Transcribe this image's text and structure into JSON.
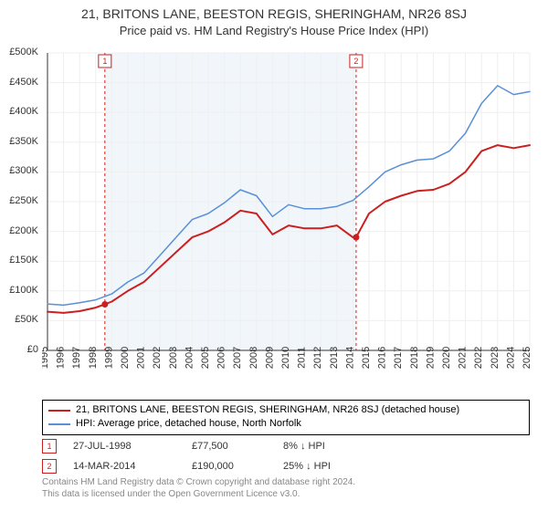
{
  "title": "21, BRITONS LANE, BEESTON REGIS, SHERINGHAM, NR26 8SJ",
  "subtitle": "Price paid vs. HM Land Registry's House Price Index (HPI)",
  "chart": {
    "type": "line",
    "background_color": "#ffffff",
    "band_color": "#f1f6fb",
    "band_start_year": 1998.57,
    "band_end_year": 2014.2,
    "ylim": [
      0,
      500000
    ],
    "ytick_step": 50000,
    "ytick_format_prefix": "£",
    "x_years": [
      1995,
      1996,
      1997,
      1998,
      1999,
      2000,
      2001,
      2002,
      2003,
      2004,
      2005,
      2006,
      2007,
      2008,
      2009,
      2010,
      2011,
      2012,
      2013,
      2014,
      2015,
      2016,
      2017,
      2018,
      2019,
      2020,
      2021,
      2022,
      2023,
      2024,
      2025
    ],
    "grid_color": "#efefef",
    "axis_color": "#333333",
    "label_fontsize": 11,
    "series": [
      {
        "id": "property",
        "label": "21, BRITONS LANE, BEESTON REGIS, SHERINGHAM, NR26 8SJ (detached house)",
        "color": "#cc1f1f",
        "line_width": 2,
        "points": [
          [
            1995,
            65000
          ],
          [
            1996,
            63000
          ],
          [
            1997,
            66000
          ],
          [
            1998,
            72000
          ],
          [
            1998.57,
            77500
          ],
          [
            1999,
            82000
          ],
          [
            2000,
            100000
          ],
          [
            2001,
            115000
          ],
          [
            2002,
            140000
          ],
          [
            2003,
            165000
          ],
          [
            2004,
            190000
          ],
          [
            2005,
            200000
          ],
          [
            2006,
            215000
          ],
          [
            2007,
            235000
          ],
          [
            2008,
            230000
          ],
          [
            2009,
            195000
          ],
          [
            2010,
            210000
          ],
          [
            2011,
            205000
          ],
          [
            2012,
            205000
          ],
          [
            2013,
            210000
          ],
          [
            2014,
            190000
          ],
          [
            2014.2,
            190000
          ],
          [
            2015,
            230000
          ],
          [
            2016,
            250000
          ],
          [
            2017,
            260000
          ],
          [
            2018,
            268000
          ],
          [
            2019,
            270000
          ],
          [
            2020,
            280000
          ],
          [
            2021,
            300000
          ],
          [
            2022,
            335000
          ],
          [
            2023,
            345000
          ],
          [
            2024,
            340000
          ],
          [
            2025,
            345000
          ]
        ]
      },
      {
        "id": "hpi",
        "label": "HPI: Average price, detached house, North Norfolk",
        "color": "#5b8fd6",
        "line_width": 1.5,
        "points": [
          [
            1995,
            78000
          ],
          [
            1996,
            76000
          ],
          [
            1997,
            80000
          ],
          [
            1998,
            85000
          ],
          [
            1999,
            95000
          ],
          [
            2000,
            115000
          ],
          [
            2001,
            130000
          ],
          [
            2002,
            160000
          ],
          [
            2003,
            190000
          ],
          [
            2004,
            220000
          ],
          [
            2005,
            230000
          ],
          [
            2006,
            248000
          ],
          [
            2007,
            270000
          ],
          [
            2008,
            260000
          ],
          [
            2009,
            225000
          ],
          [
            2010,
            245000
          ],
          [
            2011,
            238000
          ],
          [
            2012,
            238000
          ],
          [
            2013,
            242000
          ],
          [
            2014,
            252000
          ],
          [
            2015,
            275000
          ],
          [
            2016,
            300000
          ],
          [
            2017,
            312000
          ],
          [
            2018,
            320000
          ],
          [
            2019,
            322000
          ],
          [
            2020,
            335000
          ],
          [
            2021,
            365000
          ],
          [
            2022,
            415000
          ],
          [
            2023,
            445000
          ],
          [
            2024,
            430000
          ],
          [
            2025,
            435000
          ]
        ]
      }
    ],
    "markers": [
      {
        "n": "1",
        "year": 1998.57,
        "price": 77500,
        "date_label": "27-JUL-1998",
        "price_label": "£77,500",
        "delta_label": "8% ↓ HPI",
        "color": "#cc1f1f"
      },
      {
        "n": "2",
        "year": 2014.2,
        "price": 190000,
        "date_label": "14-MAR-2014",
        "price_label": "£190,000",
        "delta_label": "25% ↓ HPI",
        "color": "#cc1f1f"
      }
    ]
  },
  "legend": {
    "rows": [
      {
        "color": "#cc1f1f",
        "label": "21, BRITONS LANE, BEESTON REGIS, SHERINGHAM, NR26 8SJ (detached house)"
      },
      {
        "color": "#5b8fd6",
        "label": "HPI: Average price, detached house, North Norfolk"
      }
    ]
  },
  "footer": {
    "line1": "Contains HM Land Registry data © Crown copyright and database right 2024.",
    "line2": "This data is licensed under the Open Government Licence v3.0."
  }
}
